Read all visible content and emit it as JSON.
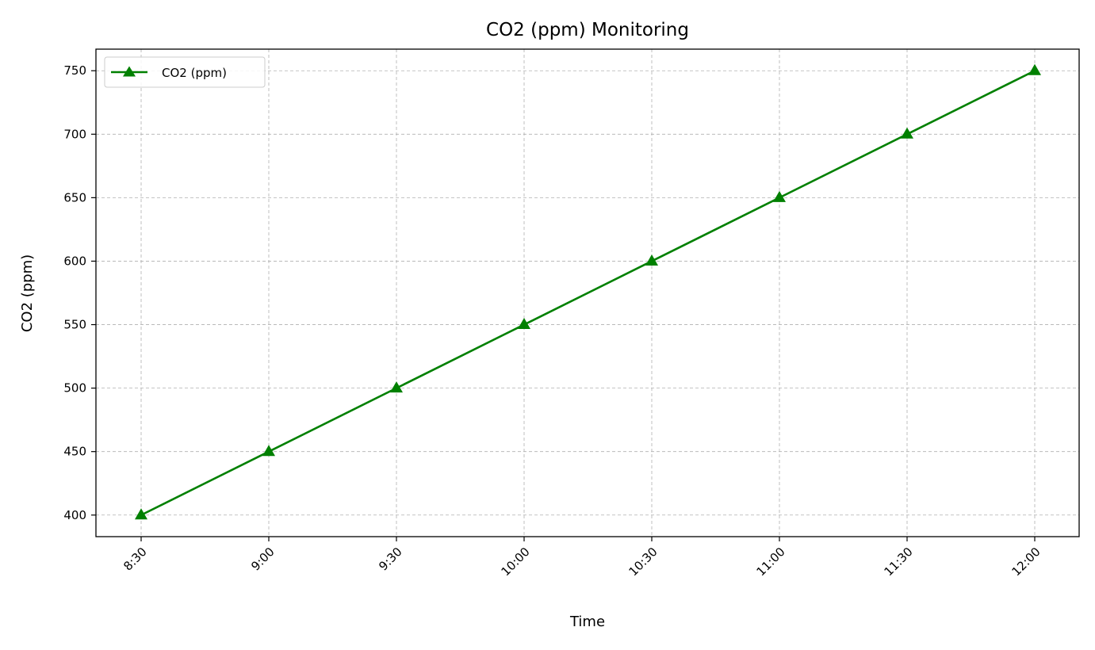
{
  "chart_data": {
    "type": "line",
    "title": "CO2 (ppm) Monitoring",
    "xlabel": "Time",
    "ylabel": "CO2 (ppm)",
    "categories": [
      "8:30",
      "9:00",
      "9:30",
      "10:00",
      "10:30",
      "11:00",
      "11:30",
      "12:00"
    ],
    "series": [
      {
        "name": "CO2 (ppm)",
        "values": [
          400,
          450,
          500,
          550,
          600,
          650,
          700,
          750
        ],
        "color": "#008000",
        "marker": "triangle-up-icon"
      }
    ],
    "yticks": [
      400,
      450,
      500,
      550,
      600,
      650,
      700,
      750
    ],
    "ylim": [
      383,
      767
    ],
    "grid": true,
    "legend_position": "top-left",
    "x_tick_rotation": "45"
  }
}
